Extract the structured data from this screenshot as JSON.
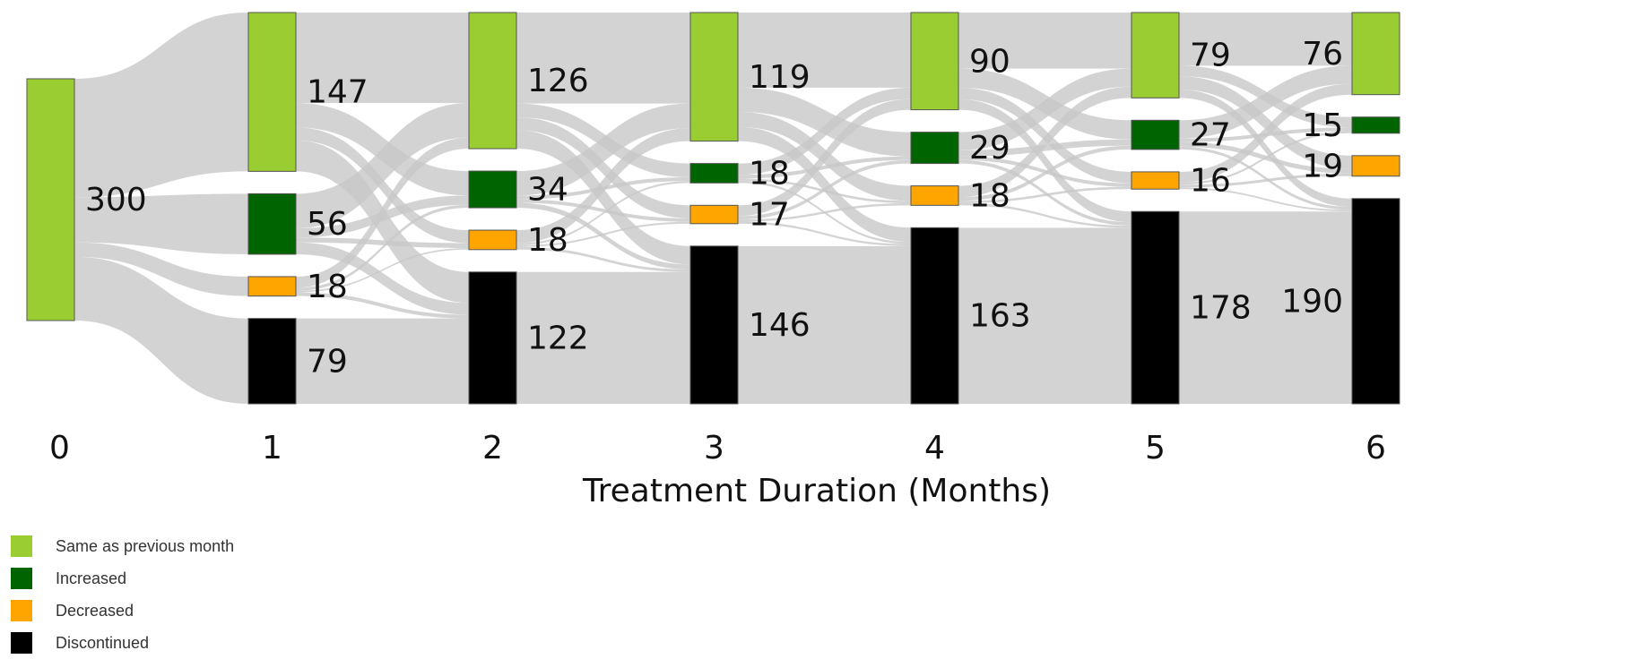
{
  "chart_data": {
    "type": "sankey",
    "xlabel": "Treatment Duration (Months)",
    "x_ticks": [
      "0",
      "1",
      "2",
      "3",
      "4",
      "5",
      "6"
    ],
    "categories": [
      {
        "key": "same",
        "label": "Same as previous month",
        "color": "#9acd32"
      },
      {
        "key": "increased",
        "label": "Increased",
        "color": "#006400"
      },
      {
        "key": "decreased",
        "label": "Decreased",
        "color": "#ffa500"
      },
      {
        "key": "discontinued",
        "label": "Discontinued",
        "color": "#000000"
      }
    ],
    "columns": [
      {
        "month": "0",
        "nodes": [
          {
            "category": "same",
            "value": 300
          }
        ]
      },
      {
        "month": "1",
        "nodes": [
          {
            "category": "same",
            "value": 147
          },
          {
            "category": "increased",
            "value": 56
          },
          {
            "category": "decreased",
            "value": 18
          },
          {
            "category": "discontinued",
            "value": 79
          }
        ]
      },
      {
        "month": "2",
        "nodes": [
          {
            "category": "same",
            "value": 126
          },
          {
            "category": "increased",
            "value": 34
          },
          {
            "category": "decreased",
            "value": 18
          },
          {
            "category": "discontinued",
            "value": 122
          }
        ]
      },
      {
        "month": "3",
        "nodes": [
          {
            "category": "same",
            "value": 119
          },
          {
            "category": "increased",
            "value": 18
          },
          {
            "category": "decreased",
            "value": 17
          },
          {
            "category": "discontinued",
            "value": 146
          }
        ]
      },
      {
        "month": "4",
        "nodes": [
          {
            "category": "same",
            "value": 90
          },
          {
            "category": "increased",
            "value": 29
          },
          {
            "category": "decreased",
            "value": 18
          },
          {
            "category": "discontinued",
            "value": 163
          }
        ]
      },
      {
        "month": "5",
        "nodes": [
          {
            "category": "same",
            "value": 79
          },
          {
            "category": "increased",
            "value": 27
          },
          {
            "category": "decreased",
            "value": 16
          },
          {
            "category": "discontinued",
            "value": 178
          }
        ]
      },
      {
        "month": "6",
        "nodes": [
          {
            "category": "same",
            "value": 76
          },
          {
            "category": "increased",
            "value": 15
          },
          {
            "category": "decreased",
            "value": 19
          },
          {
            "category": "discontinued",
            "value": 190
          }
        ]
      }
    ]
  },
  "legend": {
    "items": [
      {
        "label": "Same as previous month",
        "color": "#9acd32"
      },
      {
        "label": "Increased",
        "color": "#006400"
      },
      {
        "label": "Decreased",
        "color": "#ffa500"
      },
      {
        "label": "Discontinued",
        "color": "#000000"
      }
    ]
  }
}
